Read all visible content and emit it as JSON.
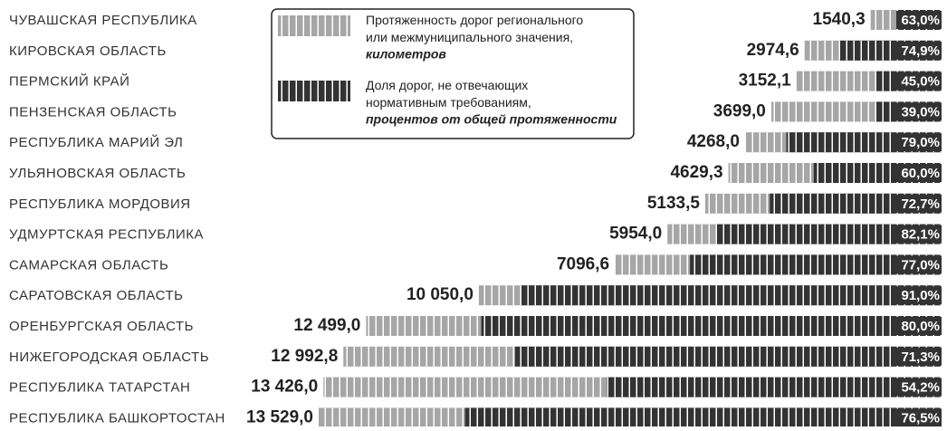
{
  "chart_data": {
    "type": "bar",
    "categories": [
      "ЧУВАШСКАЯ РЕСПУБЛИКА",
      "КИРОВСКАЯ ОБЛАСТЬ",
      "ПЕРМСКИЙ КРАЙ",
      "ПЕНЗЕНСКАЯ ОБЛАСТЬ",
      "РЕСПУБЛИКА МАРИЙ ЭЛ",
      "УЛЬЯНОВСКАЯ ОБЛАСТЬ",
      "РЕСПУБЛИКА МОРДОВИЯ",
      "УДМУРТСКАЯ РЕСПУБЛИКА",
      "САМАРСКАЯ ОБЛАСТЬ",
      "САРАТОВСКАЯ ОБЛАСТЬ",
      "ОРЕНБУРГСКАЯ ОБЛАСТЬ",
      "НИЖЕГОРОДСКАЯ ОБЛАСТЬ",
      "РЕСПУБЛИКА ТАТАРСТАН",
      "РЕСПУБЛИКА БАШКОРТОСТАН"
    ],
    "series": [
      {
        "name": "Протяженность дорог регионального или межмуниципального значения,",
        "unit": "километров",
        "color": "#a6a6a6",
        "values": [
          1540.3,
          2974.6,
          3152.1,
          3699.0,
          4268.0,
          4629.3,
          5133.5,
          5954.0,
          7096.6,
          10050.0,
          12499.0,
          12992.8,
          13426.0,
          13529.0
        ],
        "value_labels": [
          "1540,3",
          "2974,6",
          "3152,1",
          "3699,0",
          "4268,0",
          "4629,3",
          "5133,5",
          "5954,0",
          "7096,6",
          "10 050,0",
          "12 499,0",
          "12 992,8",
          "13 426,0",
          "13 529,0"
        ]
      },
      {
        "name": "Доля дорог, не отвечающих нормативным требованиям,",
        "unit": "процентов от общей протяженности",
        "color": "#333333",
        "values": [
          63.0,
          74.9,
          45.0,
          39.0,
          79.0,
          60.0,
          72.7,
          82.1,
          77.0,
          91.0,
          80.0,
          71.3,
          54.2,
          76.5
        ],
        "value_labels": [
          "63,0%",
          "74,9%",
          "45,0%",
          "39,0%",
          "79,0%",
          "60,0%",
          "72,7%",
          "82,1%",
          "77,0%",
          "91,0%",
          "80,0%",
          "71,3%",
          "54,2%",
          "76,5%"
        ]
      }
    ]
  }
}
